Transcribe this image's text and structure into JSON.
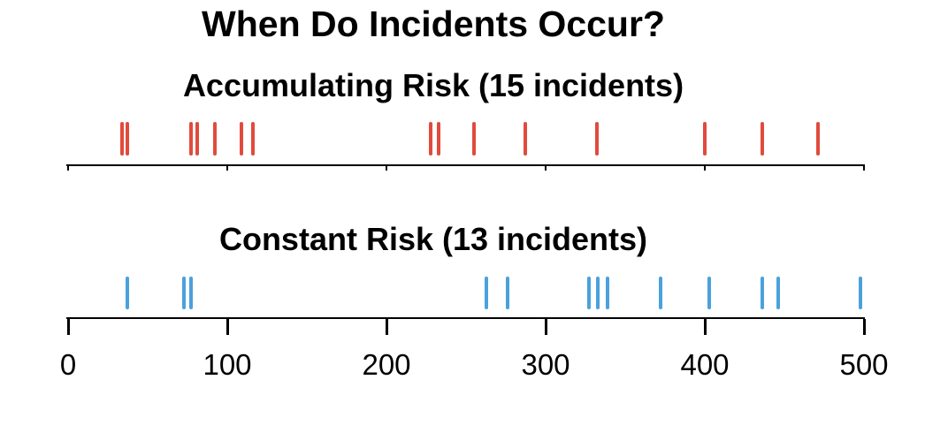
{
  "chart_data": {
    "type": "rug-timeline",
    "title": "When Do Incidents Occur?",
    "xlabel": "",
    "ylabel": "",
    "xlim": [
      0,
      500
    ],
    "x_ticks": [
      0,
      100,
      200,
      300,
      400,
      500
    ],
    "grid": false,
    "legend_position": "none",
    "series": [
      {
        "name": "Accumulating Risk (15 incidents)",
        "incident_count": 15,
        "color": "#e04b3d",
        "values": [
          34,
          37,
          77,
          81,
          92,
          109,
          116,
          228,
          233,
          255,
          287,
          332,
          400,
          436,
          471
        ]
      },
      {
        "name": "Constant Risk (13 incidents)",
        "incident_count": 13,
        "color": "#4aa1dc",
        "values": [
          37,
          73,
          77,
          263,
          276,
          327,
          333,
          339,
          372,
          403,
          436,
          446,
          498
        ]
      }
    ],
    "colors": {
      "axis": "#000000",
      "text": "#000000",
      "background": "#ffffff"
    }
  }
}
